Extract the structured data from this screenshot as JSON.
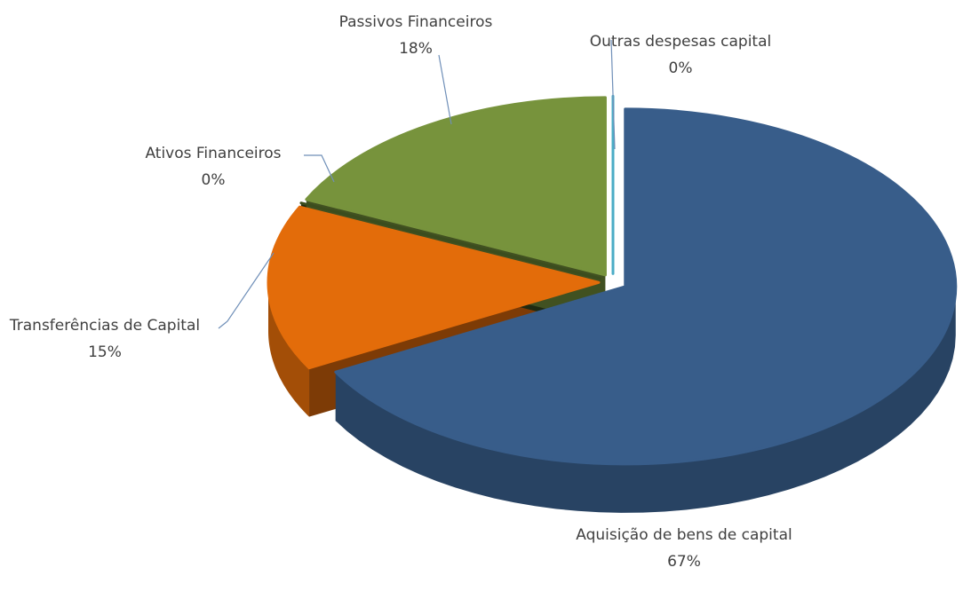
{
  "chart_data": {
    "type": "pie",
    "categories": [
      "Aquisição de bens de capital",
      "Transferências de Capital",
      "Ativos Financeiros",
      "Passivos Financeiros",
      "Outras despesas capital"
    ],
    "values": [
      67,
      15,
      0,
      18,
      0
    ],
    "value_labels": [
      "67%",
      "15%",
      "0%",
      "18%",
      "0%"
    ],
    "colors": [
      "#385d8a",
      "#e36c0a",
      "#3b4d1e",
      "#77933c",
      "#4bacc6"
    ]
  }
}
